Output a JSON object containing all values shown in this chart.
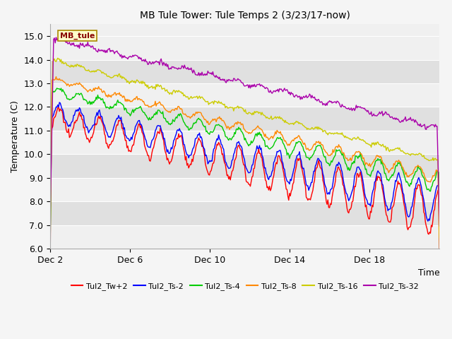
{
  "title": "MB Tule Tower: Tule Temps 2 (3/23/17-now)",
  "xlabel": "Time",
  "ylabel": "Temperature (C)",
  "ylim": [
    6.0,
    15.5
  ],
  "xlim_days": [
    0,
    19.5
  ],
  "fig_bg_color": "#f5f5f5",
  "xtick_labels": [
    "Dec 2",
    "Dec 6",
    "Dec 10",
    "Dec 14",
    "Dec 18"
  ],
  "xtick_positions": [
    0,
    4,
    8,
    12,
    16
  ],
  "ytick_labels": [
    "6.0",
    "7.0",
    "8.0",
    "9.0",
    "10.0",
    "11.0",
    "12.0",
    "13.0",
    "14.0",
    "15.0"
  ],
  "ytick_positions": [
    6.0,
    7.0,
    8.0,
    9.0,
    10.0,
    11.0,
    12.0,
    13.0,
    14.0,
    15.0
  ],
  "series": [
    {
      "label": "Tul2_Tw+2",
      "color": "#ff0000"
    },
    {
      "label": "Tul2_Ts-2",
      "color": "#0000ff"
    },
    {
      "label": "Tul2_Ts-4",
      "color": "#00cc00"
    },
    {
      "label": "Tul2_Ts-8",
      "color": "#ff8800"
    },
    {
      "label": "Tul2_Ts-16",
      "color": "#cccc00"
    },
    {
      "label": "Tul2_Ts-32",
      "color": "#aa00aa"
    }
  ],
  "mb_tule_label": "MB_tule",
  "mb_tule_bg": "#ffffcc",
  "mb_tule_border": "#aa8800",
  "mb_tule_text_color": "#880000",
  "band_light": "#f0f0f0",
  "band_dark": "#e0e0e0"
}
